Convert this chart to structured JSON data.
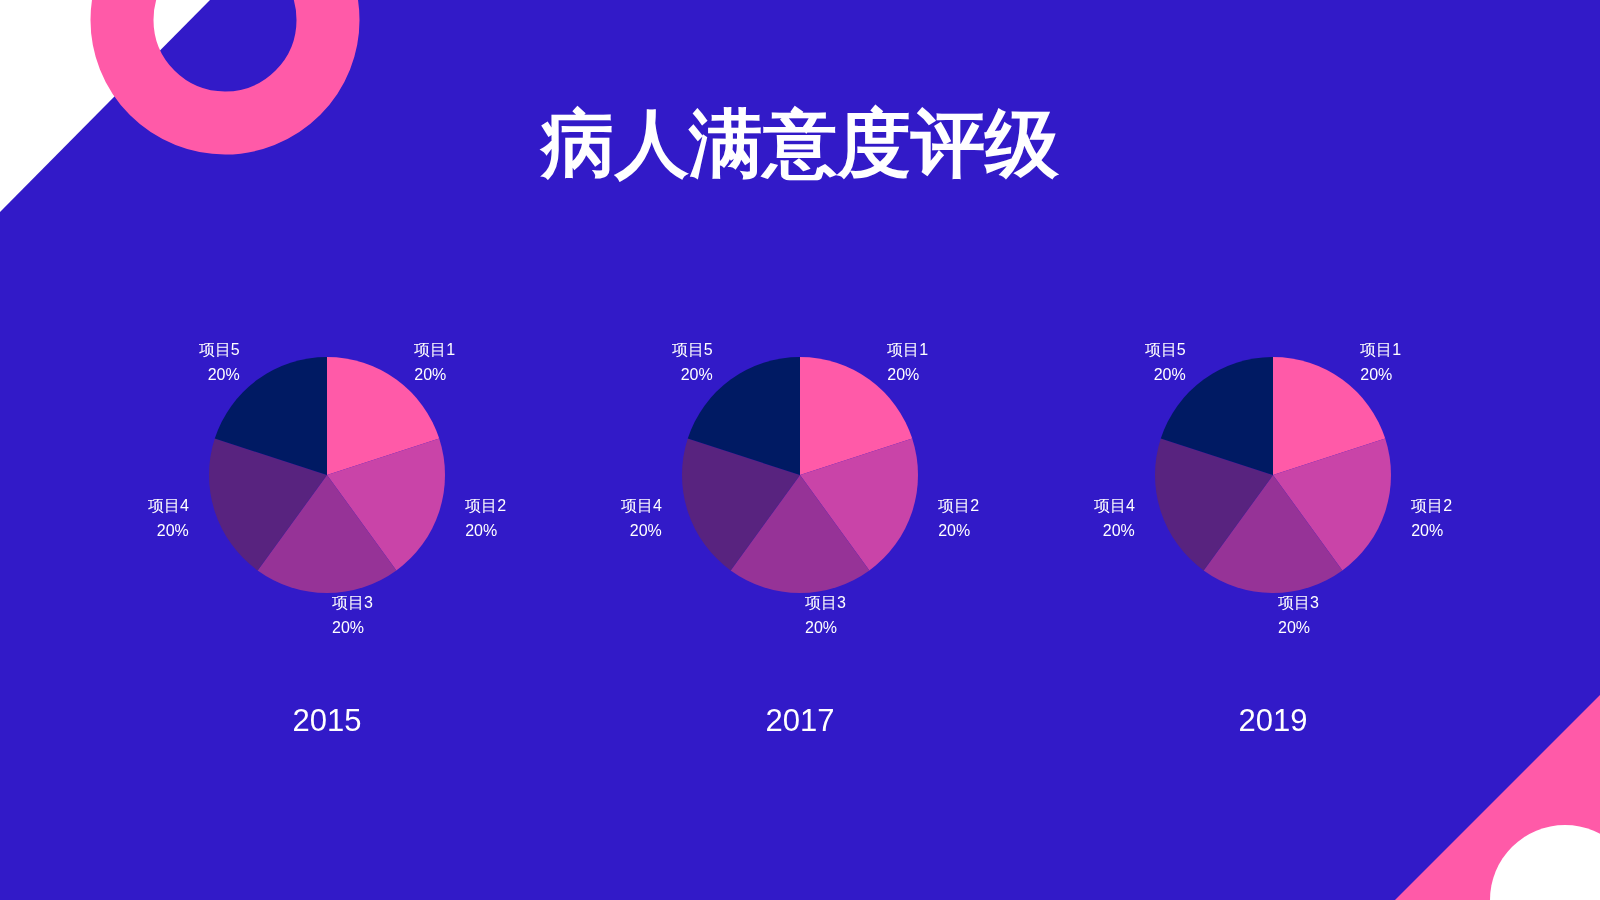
{
  "chart_data": [
    {
      "type": "pie",
      "title": "2015",
      "annotations": [
        "病人满意度评级"
      ],
      "categories": [
        "项目1",
        "项目2",
        "项目3",
        "项目4",
        "项目5"
      ],
      "values": [
        20,
        20,
        20,
        20,
        20
      ],
      "colors": [
        "#ff5aa8",
        "#c944a8",
        "#963397",
        "#58237f",
        "#001a63"
      ],
      "value_labels": [
        "20%",
        "20%",
        "20%",
        "20%",
        "20%"
      ],
      "legend": false
    },
    {
      "type": "pie",
      "title": "2017",
      "categories": [
        "项目1",
        "项目2",
        "项目3",
        "项目4",
        "项目5"
      ],
      "values": [
        20,
        20,
        20,
        20,
        20
      ],
      "colors": [
        "#ff5aa8",
        "#c944a8",
        "#963397",
        "#58237f",
        "#001a63"
      ],
      "value_labels": [
        "20%",
        "20%",
        "20%",
        "20%",
        "20%"
      ],
      "legend": false
    },
    {
      "type": "pie",
      "title": "2019",
      "categories": [
        "项目1",
        "项目2",
        "项目3",
        "项目4",
        "项目5"
      ],
      "values": [
        20,
        20,
        20,
        20,
        20
      ],
      "colors": [
        "#ff5aa8",
        "#c944a8",
        "#963397",
        "#58237f",
        "#001a63"
      ],
      "value_labels": [
        "20%",
        "20%",
        "20%",
        "20%",
        "20%"
      ],
      "legend": false
    }
  ]
}
